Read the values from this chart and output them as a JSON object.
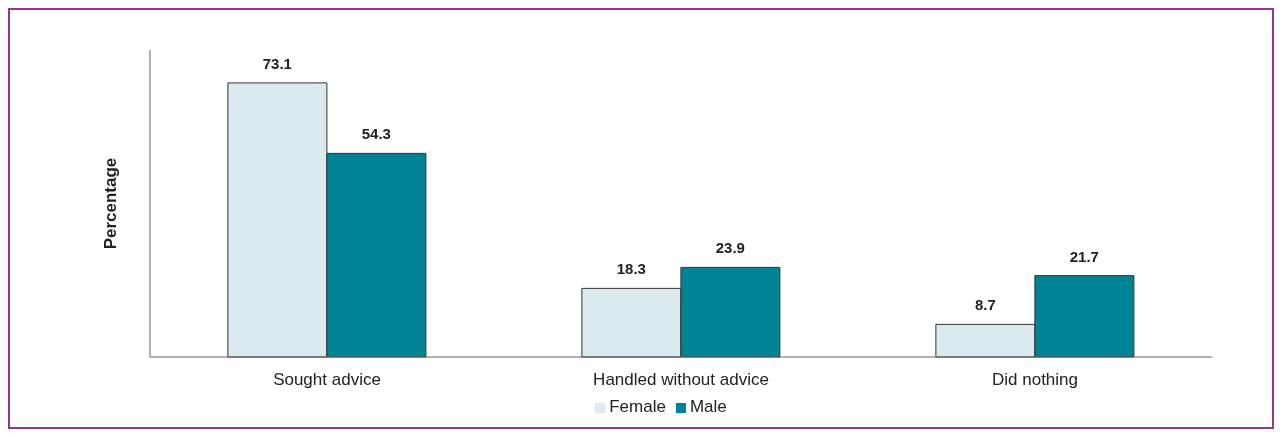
{
  "chart_data": {
    "type": "bar",
    "ylabel": "Percentage",
    "categories": [
      "Sought advice",
      "Handled without advice",
      "Did nothing"
    ],
    "series": [
      {
        "name": "Female",
        "color": "#daeaee",
        "values": [
          73.1,
          18.3,
          8.7
        ]
      },
      {
        "name": "Male",
        "color": "#008394",
        "values": [
          54.3,
          23.9,
          21.7
        ]
      }
    ],
    "relative": false,
    "data_labels": true,
    "legend": "bottom",
    "grid": false
  }
}
